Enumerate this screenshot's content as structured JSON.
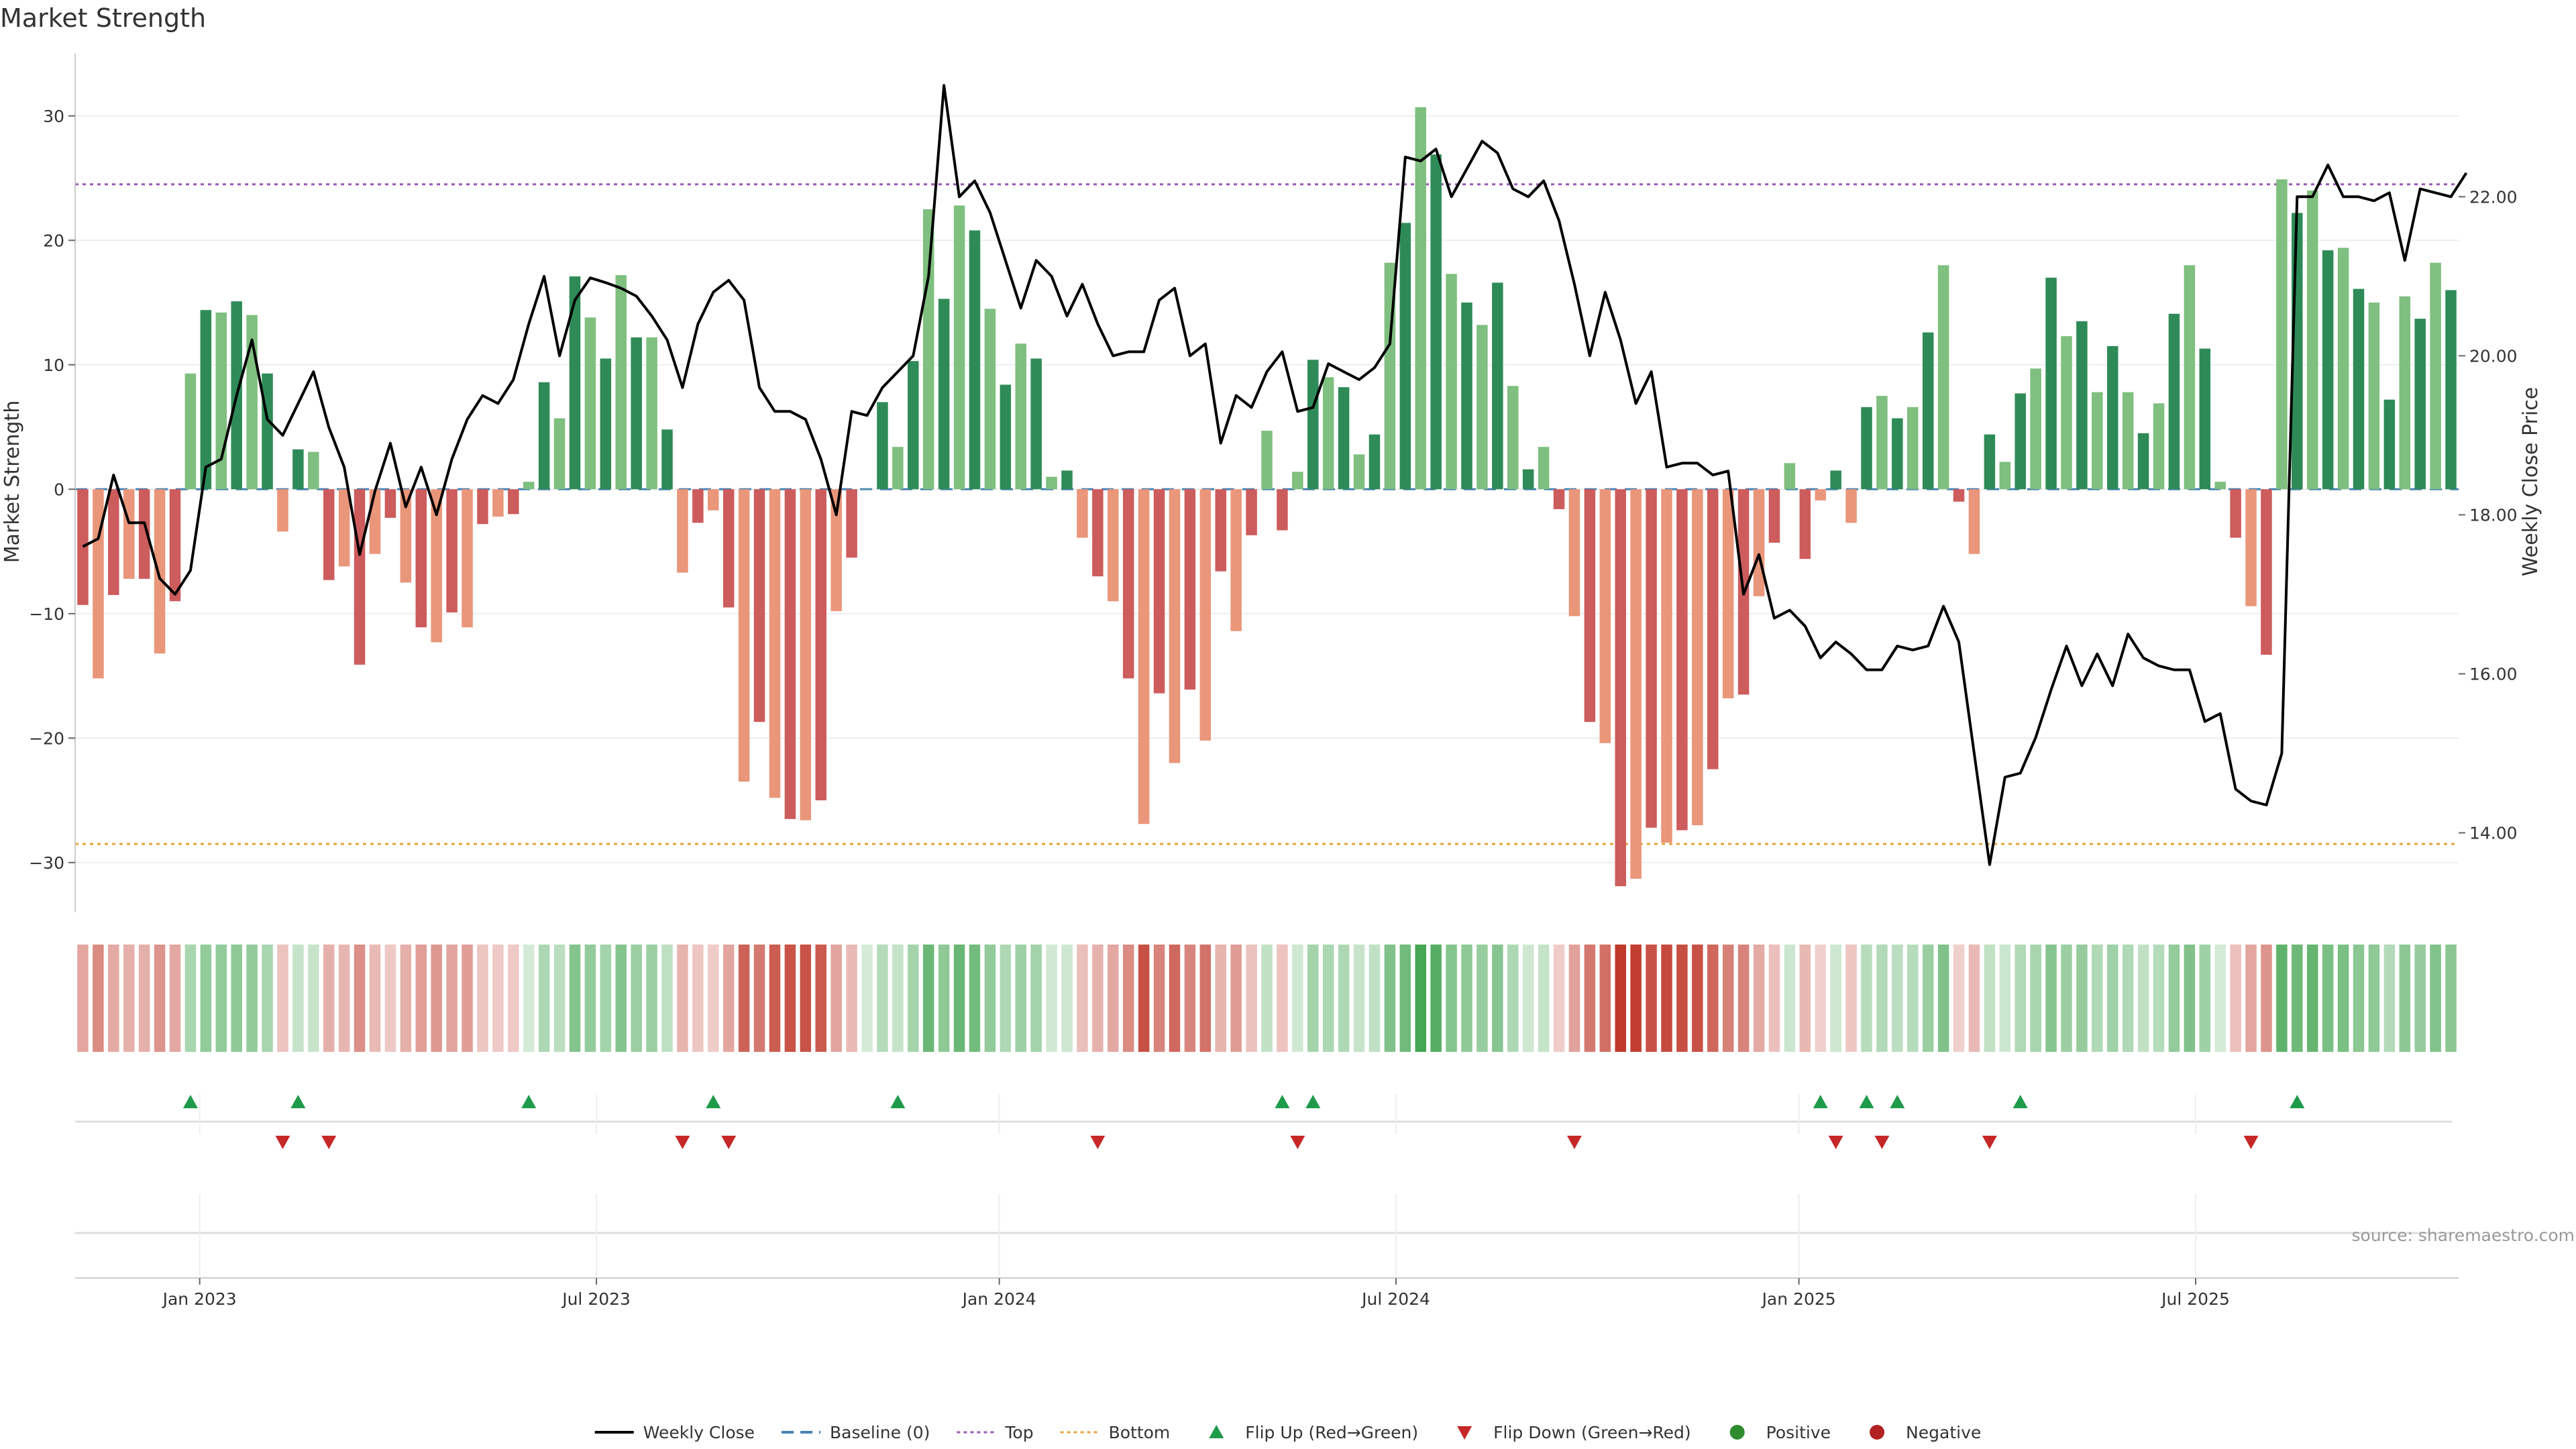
{
  "chart_data": {
    "type": "bar",
    "title": "Market Strength",
    "ylabel": "Market Strength",
    "y2label": "Weekly Close Price",
    "ylim": [
      -34,
      35
    ],
    "y2lim": [
      13.0,
      23.8
    ],
    "yticks": [
      30,
      20,
      10,
      0,
      -10,
      -20,
      -30
    ],
    "ytick_labels": [
      "30",
      "20",
      "10",
      "0",
      "−10",
      "−20",
      "−30"
    ],
    "y2ticks": [
      22,
      20,
      18,
      16,
      14
    ],
    "y2tick_labels": [
      "22.00",
      "20.00",
      "18.00",
      "16.00",
      "14.00"
    ],
    "top_level": 24.5,
    "bottom_level": -28.5,
    "baseline": 0,
    "x_labels": [
      {
        "label": "Jan 2023",
        "index": 7.6
      },
      {
        "label": "Jul 2023",
        "index": 33.4
      },
      {
        "label": "Jan 2024",
        "index": 59.6
      },
      {
        "label": "Jul 2024",
        "index": 85.4
      },
      {
        "label": "Jan 2025",
        "index": 111.6
      },
      {
        "label": "Jul 2025",
        "index": 137.4
      }
    ],
    "strength": [
      -9.3,
      -15.2,
      -8.5,
      -7.2,
      -7.2,
      -13.2,
      -9.0,
      9.3,
      14.4,
      14.2,
      15.1,
      14.0,
      9.3,
      -3.4,
      3.2,
      3.0,
      -7.3,
      -6.2,
      -14.1,
      -5.2,
      -2.3,
      -7.5,
      -11.1,
      -12.3,
      -9.9,
      -11.1,
      -2.8,
      -2.2,
      -2.0,
      0.6,
      8.6,
      5.7,
      17.1,
      13.8,
      10.5,
      17.2,
      12.2,
      12.2,
      4.8,
      -6.7,
      -2.7,
      -1.7,
      -9.5,
      -23.5,
      -18.7,
      -24.8,
      -26.5,
      -26.6,
      -25.0,
      -9.8,
      -5.5,
      0,
      7.0,
      3.4,
      10.3,
      22.5,
      15.3,
      22.8,
      20.8,
      14.5,
      8.4,
      11.7,
      10.5,
      1.0,
      1.5,
      -3.9,
      -7.0,
      -9.0,
      -15.2,
      -26.9,
      -16.4,
      -22.0,
      -16.1,
      -20.2,
      -6.6,
      -11.4,
      -3.7,
      4.7,
      -3.3,
      1.4,
      10.4,
      9.0,
      8.2,
      2.8,
      4.4,
      18.2,
      21.4,
      30.7,
      26.9,
      17.3,
      15.0,
      13.2,
      16.6,
      8.3,
      1.6,
      3.4,
      -1.6,
      -10.2,
      -18.7,
      -20.4,
      -31.9,
      -31.3,
      -27.2,
      -28.4,
      -27.4,
      -27.0,
      -22.5,
      -16.8,
      -16.5,
      -8.6,
      -4.3,
      2.1,
      -5.6,
      -0.9,
      1.5,
      -2.7,
      6.6,
      7.5,
      5.7,
      6.6,
      12.6,
      18.0,
      -1.0,
      -5.2,
      4.4,
      2.2,
      7.7,
      9.7,
      17.0,
      12.3,
      13.5,
      7.8,
      11.5,
      7.8,
      4.5,
      6.9,
      14.1,
      18.0,
      11.3,
      0.6,
      -3.9,
      -9.4,
      -13.3,
      24.9,
      22.2,
      24.0,
      19.2,
      19.4,
      16.1,
      15.0,
      7.2,
      15.5,
      13.7,
      18.2,
      16.0
    ],
    "price": [
      17.6,
      17.7,
      18.5,
      17.9,
      17.9,
      17.2,
      17.0,
      17.3,
      18.6,
      18.7,
      19.5,
      20.2,
      19.2,
      19.0,
      19.4,
      19.8,
      19.1,
      18.6,
      17.5,
      18.3,
      18.9,
      18.1,
      18.6,
      18.0,
      18.7,
      19.2,
      19.5,
      19.4,
      19.7,
      20.4,
      21.0,
      20.0,
      20.7,
      20.98,
      20.92,
      20.85,
      20.75,
      20.5,
      20.2,
      19.6,
      20.4,
      20.8,
      20.95,
      20.7,
      19.6,
      19.3,
      19.3,
      19.2,
      18.7,
      18.0,
      19.3,
      19.25,
      19.6,
      19.8,
      20.0,
      21.0,
      23.4,
      22.0,
      22.2,
      21.8,
      21.2,
      20.6,
      21.2,
      21.0,
      20.5,
      20.9,
      20.4,
      20.0,
      20.05,
      20.05,
      20.7,
      20.85,
      20.0,
      20.15,
      18.9,
      19.5,
      19.35,
      19.8,
      20.05,
      19.3,
      19.35,
      19.9,
      19.8,
      19.7,
      19.85,
      20.15,
      22.5,
      22.45,
      22.6,
      22.0,
      22.35,
      22.7,
      22.55,
      22.1,
      22.0,
      22.2,
      21.7,
      20.9,
      20.0,
      20.8,
      20.2,
      19.4,
      19.8,
      18.6,
      18.65,
      18.65,
      18.5,
      18.55,
      17.0,
      17.5,
      16.7,
      16.8,
      16.6,
      16.2,
      16.4,
      16.25,
      16.05,
      16.05,
      16.35,
      16.3,
      16.35,
      16.85,
      16.4,
      15.0,
      13.6,
      14.7,
      14.75,
      15.2,
      15.8,
      16.35,
      15.85,
      16.25,
      15.85,
      16.5,
      16.2,
      16.1,
      16.05,
      16.05,
      15.4,
      15.5,
      14.55,
      14.4,
      14.35,
      15.0,
      22.0,
      22.0,
      22.4,
      22.0,
      22.0,
      21.95,
      22.05,
      21.2,
      22.1,
      22.05,
      22.0,
      22.3
    ],
    "bar_colors": {
      "strong_pos": "#2e8b57",
      "weak_pos": "#7fbf7f",
      "strong_neg": "#cd5c5c",
      "weak_neg": "#e9967a"
    },
    "heat_colors": {
      "pos": "#3fa34d",
      "neg": "#c0392b"
    },
    "flip_up_indices": [
      7,
      14,
      29,
      41,
      53,
      78,
      80,
      113,
      116,
      118,
      126,
      144
    ],
    "flip_down_indices": [
      13,
      16,
      39,
      42,
      66,
      79,
      97,
      114,
      117,
      124,
      141
    ],
    "legend": [
      {
        "label": "Weekly Close",
        "kind": "line",
        "color": "#000000"
      },
      {
        "label": "Baseline (0)",
        "kind": "dash",
        "color": "#4682b4"
      },
      {
        "label": "Top",
        "kind": "dot",
        "color": "#9b59b6"
      },
      {
        "label": "Bottom",
        "kind": "dot",
        "color": "#e8a33d"
      },
      {
        "label": "Flip Up (Red→Green)",
        "kind": "up",
        "color": "#1e9b4a"
      },
      {
        "label": "Flip Down (Green→Red)",
        "kind": "down",
        "color": "#c62828"
      },
      {
        "label": "Positive",
        "kind": "circle",
        "color": "#2e8b2e"
      },
      {
        "label": "Negative",
        "kind": "circle",
        "color": "#b22222"
      }
    ],
    "source": "source: sharemaestro.com"
  }
}
